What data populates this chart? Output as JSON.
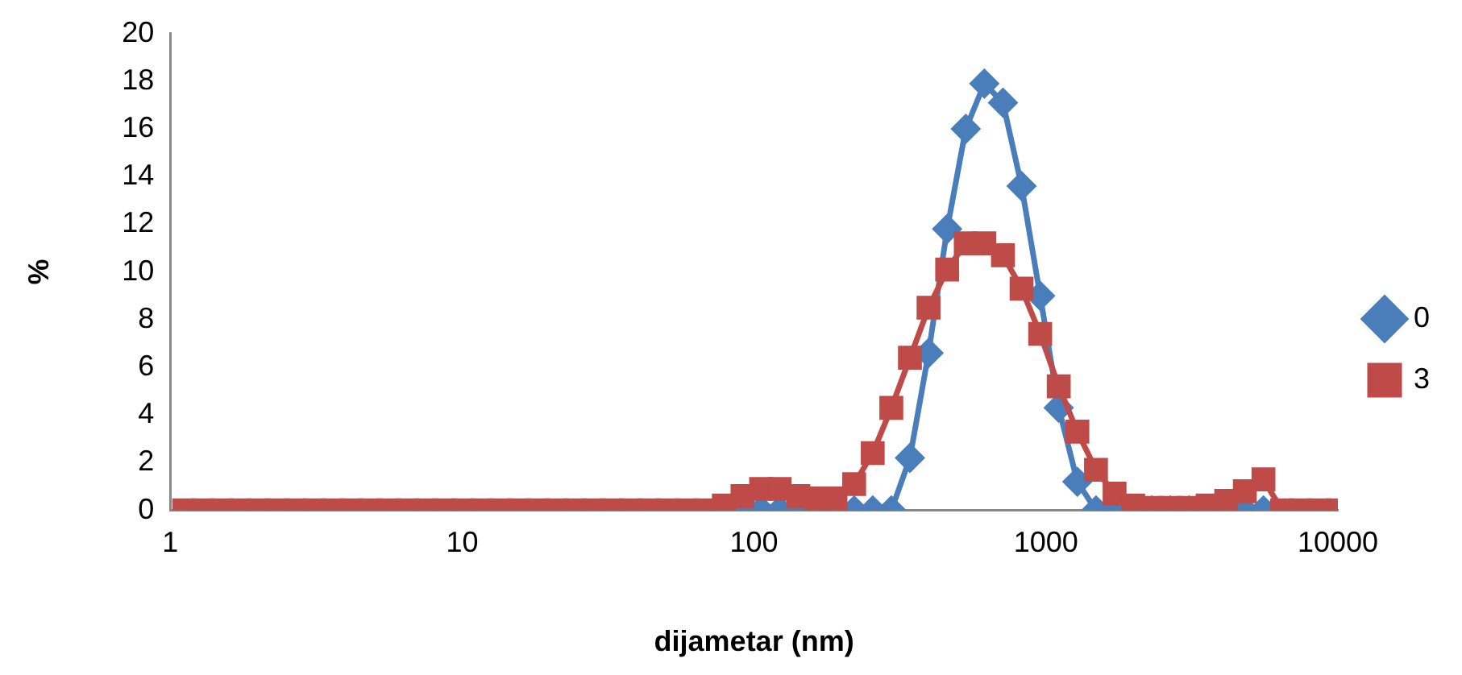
{
  "chart_data": {
    "type": "line",
    "xlabel": "dijametar (nm)",
    "ylabel": "%",
    "log": "x",
    "x": [
      1.117,
      1.294,
      1.499,
      1.736,
      2.01,
      2.328,
      2.696,
      3.122,
      3.615,
      4.187,
      4.849,
      5.615,
      6.503,
      7.531,
      8.721,
      10.1,
      11.7,
      13.54,
      15.69,
      18.17,
      21.04,
      24.36,
      28.21,
      32.67,
      37.84,
      43.82,
      50.75,
      58.77,
      68.06,
      78.82,
      91.28,
      105.7,
      122.4,
      141.8,
      164.2,
      190.1,
      220.2,
      255.0,
      295.3,
      342.0,
      396.1,
      458.7,
      531.2,
      615.1,
      712.4,
      825.0,
      955.4,
      1106,
      1281,
      1484,
      1718,
      1990,
      2305,
      2669,
      3091,
      3580,
      4145,
      4801,
      5560,
      6439,
      7456,
      8635,
      10000
    ],
    "series": [
      {
        "name": "0",
        "color": "#4a7ebb",
        "marker": "diamond",
        "values": [
          null,
          null,
          null,
          null,
          null,
          null,
          null,
          null,
          null,
          null,
          null,
          null,
          null,
          null,
          null,
          null,
          null,
          null,
          null,
          null,
          null,
          null,
          null,
          null,
          null,
          null,
          null,
          null,
          null,
          0,
          0,
          0,
          0,
          0,
          0,
          0,
          0,
          0,
          0,
          2.2,
          6.6,
          11.8,
          16.0,
          17.9,
          17.1,
          13.6,
          9.0,
          4.3,
          1.2,
          0,
          0,
          0,
          0,
          0,
          0,
          0,
          0,
          0,
          0,
          null,
          null,
          null,
          null
        ]
      },
      {
        "name": "3",
        "color": "#be4b48",
        "marker": "square",
        "values": [
          0,
          0,
          0,
          0,
          0,
          0,
          0,
          0,
          0,
          0,
          0,
          0,
          0,
          0,
          0,
          0,
          0,
          0,
          0,
          0,
          0,
          0,
          0,
          0,
          0,
          0,
          0,
          0,
          0,
          0.2,
          0.6,
          0.9,
          0.9,
          0.6,
          0.5,
          0.5,
          1.1,
          2.4,
          4.3,
          6.4,
          8.5,
          10.1,
          11.2,
          11.2,
          10.7,
          9.3,
          7.4,
          5.2,
          3.3,
          1.7,
          0.7,
          0.2,
          0.1,
          0.1,
          0.1,
          0.2,
          0.4,
          0.8,
          1.3,
          0,
          0,
          0,
          0
        ]
      }
    ],
    "xlim": [
      1,
      10000
    ],
    "xticks": [
      1,
      10,
      100,
      1000,
      10000
    ],
    "ylim": [
      0,
      20
    ],
    "yticks": [
      0,
      2,
      4,
      6,
      8,
      10,
      12,
      14,
      16,
      18,
      20
    ],
    "grid": false,
    "legend": "right",
    "line_style": "solid"
  }
}
